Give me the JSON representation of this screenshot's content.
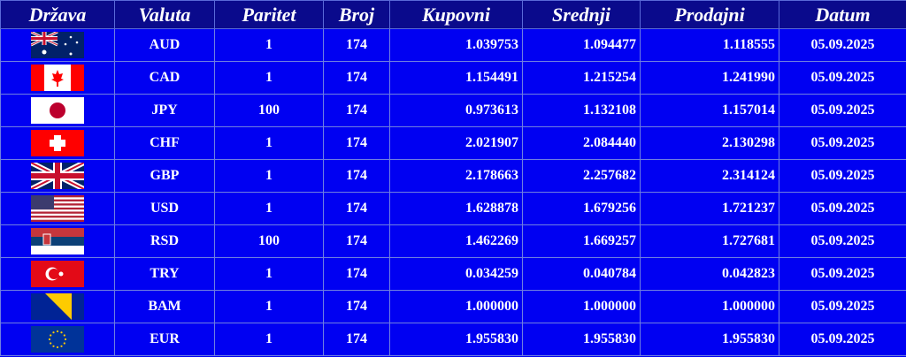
{
  "headers": {
    "country": "Država",
    "currency": "Valuta",
    "parity": "Paritet",
    "number": "Broj",
    "buy": "Kupovni",
    "middle": "Srednji",
    "sell": "Prodajni",
    "date": "Datum"
  },
  "rows": [
    {
      "flag": "australia-flag",
      "currency": "AUD",
      "parity": "1",
      "number": "174",
      "buy": "1.039753",
      "middle": "1.094477",
      "sell": "1.118555",
      "date": "05.09.2025"
    },
    {
      "flag": "canada-flag",
      "currency": "CAD",
      "parity": "1",
      "number": "174",
      "buy": "1.154491",
      "middle": "1.215254",
      "sell": "1.241990",
      "date": "05.09.2025"
    },
    {
      "flag": "japan-flag",
      "currency": "JPY",
      "parity": "100",
      "number": "174",
      "buy": "0.973613",
      "middle": "1.132108",
      "sell": "1.157014",
      "date": "05.09.2025"
    },
    {
      "flag": "switzerland-flag",
      "currency": "CHF",
      "parity": "1",
      "number": "174",
      "buy": "2.021907",
      "middle": "2.084440",
      "sell": "2.130298",
      "date": "05.09.2025"
    },
    {
      "flag": "uk-flag",
      "currency": "GBP",
      "parity": "1",
      "number": "174",
      "buy": "2.178663",
      "middle": "2.257682",
      "sell": "2.314124",
      "date": "05.09.2025"
    },
    {
      "flag": "usa-flag",
      "currency": "USD",
      "parity": "1",
      "number": "174",
      "buy": "1.628878",
      "middle": "1.679256",
      "sell": "1.721237",
      "date": "05.09.2025"
    },
    {
      "flag": "serbia-flag",
      "currency": "RSD",
      "parity": "100",
      "number": "174",
      "buy": "1.462269",
      "middle": "1.669257",
      "sell": "1.727681",
      "date": "05.09.2025"
    },
    {
      "flag": "turkey-flag",
      "currency": "TRY",
      "parity": "1",
      "number": "174",
      "buy": "0.034259",
      "middle": "0.040784",
      "sell": "0.042823",
      "date": "05.09.2025"
    },
    {
      "flag": "bosnia-flag",
      "currency": "BAM",
      "parity": "1",
      "number": "174",
      "buy": "1.000000",
      "middle": "1.000000",
      "sell": "1.000000",
      "date": "05.09.2025"
    },
    {
      "flag": "eu-flag",
      "currency": "EUR",
      "parity": "1",
      "number": "174",
      "buy": "1.955830",
      "middle": "1.955830",
      "sell": "1.955830",
      "date": "05.09.2025"
    }
  ],
  "colors": {
    "header_bg": "#0a0a8c",
    "row_bg": "#0000f2",
    "text": "#ffffff"
  }
}
